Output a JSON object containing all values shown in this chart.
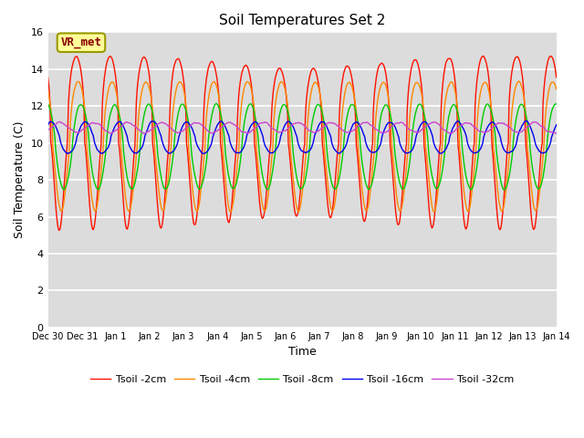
{
  "title": "Soil Temperatures Set 2",
  "xlabel": "Time",
  "ylabel": "Soil Temperature (C)",
  "ylim": [
    0,
    16
  ],
  "background_color": "#dcdcdc",
  "plot_bg_color": "#dcdcdc",
  "grid_color": "#ffffff",
  "annotation_text": "VR_met",
  "annotation_color": "#8b0000",
  "annotation_bg": "#ffff99",
  "annotation_border": "#999900",
  "lines": {
    "Tsoil -2cm": {
      "color": "#ff1100",
      "lw": 1.0
    },
    "Tsoil -4cm": {
      "color": "#ff8800",
      "lw": 1.0
    },
    "Tsoil -8cm": {
      "color": "#00cc00",
      "lw": 1.0
    },
    "Tsoil -16cm": {
      "color": "#0000ee",
      "lw": 1.0
    },
    "Tsoil -32cm": {
      "color": "#cc44cc",
      "lw": 1.0
    }
  },
  "xtick_labels": [
    "Dec 30",
    "Dec 31",
    "Jan 1",
    "Jan 2",
    "Jan 3",
    "Jan 4",
    "Jan 5",
    "Jan 6",
    "Jan 7",
    "Jan 8",
    "Jan 9",
    "Jan 10",
    "Jan 11",
    "Jan 12",
    "Jan 13",
    "Jan 14"
  ],
  "legend_order": [
    "Tsoil -2cm",
    "Tsoil -4cm",
    "Tsoil -8cm",
    "Tsoil -16cm",
    "Tsoil -32cm"
  ]
}
